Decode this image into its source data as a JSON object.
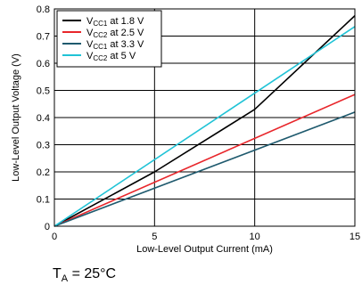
{
  "chart_data": {
    "type": "line",
    "xlabel": "Low-Level Output Current (mA)",
    "ylabel": "Low-Level Output Voltage (V)",
    "xlim": [
      0,
      15
    ],
    "ylim": [
      0,
      0.8
    ],
    "x_ticks": [
      0,
      5,
      10,
      15
    ],
    "y_ticks": [
      0,
      0.1,
      0.2,
      0.3,
      0.4,
      0.5,
      0.6,
      0.7,
      0.8
    ],
    "grid": true,
    "legend_position": "top-left",
    "series": [
      {
        "name_prefix": "V",
        "name_sub": "CC1",
        "name_suffix": " at 1.8 V",
        "color": "#000000",
        "x": [
          0,
          5,
          10,
          15
        ],
        "y": [
          0,
          0.2,
          0.43,
          0.775
        ]
      },
      {
        "name_prefix": "V",
        "name_sub": "CC2",
        "name_suffix": " at 2.5 V",
        "color": "#e8262b",
        "x": [
          0,
          15
        ],
        "y": [
          0,
          0.485
        ]
      },
      {
        "name_prefix": "V",
        "name_sub": "CC1",
        "name_suffix": " at 3.3 V",
        "color": "#1f5a6e",
        "x": [
          0,
          15
        ],
        "y": [
          0,
          0.42
        ]
      },
      {
        "name_prefix": "V",
        "name_sub": "CC2",
        "name_suffix": " at 5 V",
        "color": "#20c3d6",
        "x": [
          0,
          15
        ],
        "y": [
          0,
          0.735
        ]
      }
    ]
  },
  "note": {
    "prefix": "T",
    "sub": "A",
    "suffix": " = 25°C"
  }
}
